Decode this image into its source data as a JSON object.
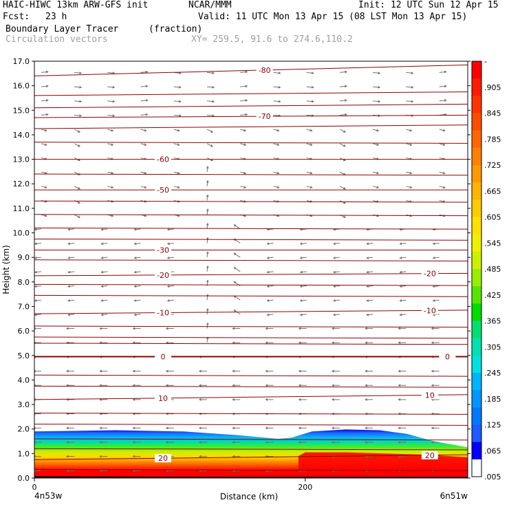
{
  "header": {
    "model": "HAIC-HIWC 13km ARW-GFS init",
    "org": "NCAR/MMM",
    "init": "Init: 12 UTC Sun 12 Apr 15",
    "fcst_label": "Fcst:",
    "fcst_value": "23 h",
    "valid": "Valid: 11 UTC Mon 13 Apr 15 (08 LST Mon 13 Apr 15)",
    "field1_name": "Boundary Layer Tracer",
    "field1_units": "(fraction)",
    "field2_name": "Circulation vectors",
    "xy_text": "XY= 259.5, 91.6 to 274.6,110.2"
  },
  "chart_data": {
    "type": "heatmap",
    "xlabel": "Distance (km)",
    "ylabel": "Height (km)",
    "xlim": [
      0,
      320
    ],
    "ylim": [
      0.0,
      17.0
    ],
    "x_ticks": [
      {
        "value": 0,
        "label": "0"
      },
      {
        "value": 200,
        "label": "200"
      }
    ],
    "x_end_labels": [
      "4n53w",
      "6n51w"
    ],
    "y_ticks": [
      "0.0",
      "1.0",
      "2.0",
      "3.0",
      "4.0",
      "5.0",
      "6.0",
      "7.0",
      "8.0",
      "9.0",
      "10.0",
      "11.0",
      "12.0",
      "13.0",
      "14.0",
      "15.0",
      "16.0",
      "17.0"
    ],
    "colorbar": {
      "labels": [
        "-",
        ".905",
        ".845",
        ".785",
        ".725",
        ".665",
        ".605",
        ".545",
        ".485",
        ".425",
        ".365",
        ".305",
        ".245",
        ".185",
        ".125",
        ".065",
        ".005"
      ]
    },
    "isotherms": [
      {
        "label": "-80",
        "h": 16.4,
        "dh": 0.45
      },
      {
        "label": "-70",
        "h": 14.7,
        "dh": 0.1
      },
      {
        "label": "-60",
        "h": 13.0,
        "dh": 0.0
      },
      {
        "label": "-50",
        "h": 11.75,
        "dh": 0.0
      },
      {
        "label": "-30",
        "h": 9.3,
        "dh": 0.0
      },
      {
        "label": "-20",
        "h": 8.25,
        "dh": 0.1
      },
      {
        "label": "-10",
        "h": 6.7,
        "dh": 0.15
      },
      {
        "label": "0",
        "h": 4.95,
        "dh": 0.0
      },
      {
        "label": "10",
        "h": 3.2,
        "dh": 0.2
      },
      {
        "label": "20",
        "h": 0.75,
        "dh": 0.2
      }
    ]
  }
}
